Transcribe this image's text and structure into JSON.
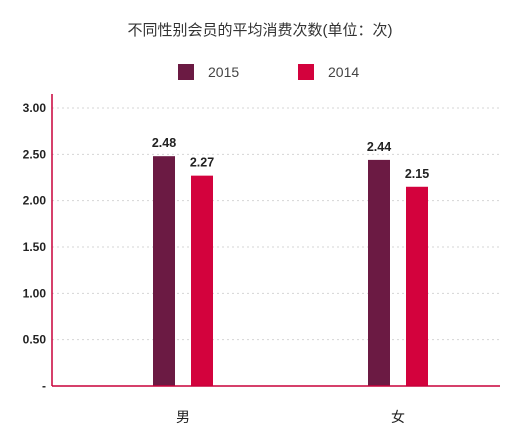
{
  "chart_data": {
    "type": "bar",
    "title": "不同性别会员的平均消费次数(单位：次)",
    "categories": [
      "男",
      "女"
    ],
    "series": [
      {
        "name": "2015",
        "color": "#6b1a43",
        "values": [
          2.48,
          2.44
        ],
        "labels": [
          "2.48",
          "2.44"
        ]
      },
      {
        "name": "2014",
        "color": "#d3023d",
        "values": [
          2.27,
          2.15
        ],
        "labels": [
          "2.27",
          "2.15"
        ]
      }
    ],
    "yticks": [
      {
        "value": 0,
        "label": "-"
      },
      {
        "value": 0.5,
        "label": "0.50"
      },
      {
        "value": 1.0,
        "label": "1.00"
      },
      {
        "value": 1.5,
        "label": "1.50"
      },
      {
        "value": 2.0,
        "label": "2.00"
      },
      {
        "value": 2.5,
        "label": "2.50"
      },
      {
        "value": 3.0,
        "label": "3.00"
      }
    ],
    "ylim": [
      0,
      3.0
    ],
    "xlabel": "",
    "ylabel": "",
    "grid": true,
    "legend": "top-center",
    "axis_color": "#c8003a"
  }
}
